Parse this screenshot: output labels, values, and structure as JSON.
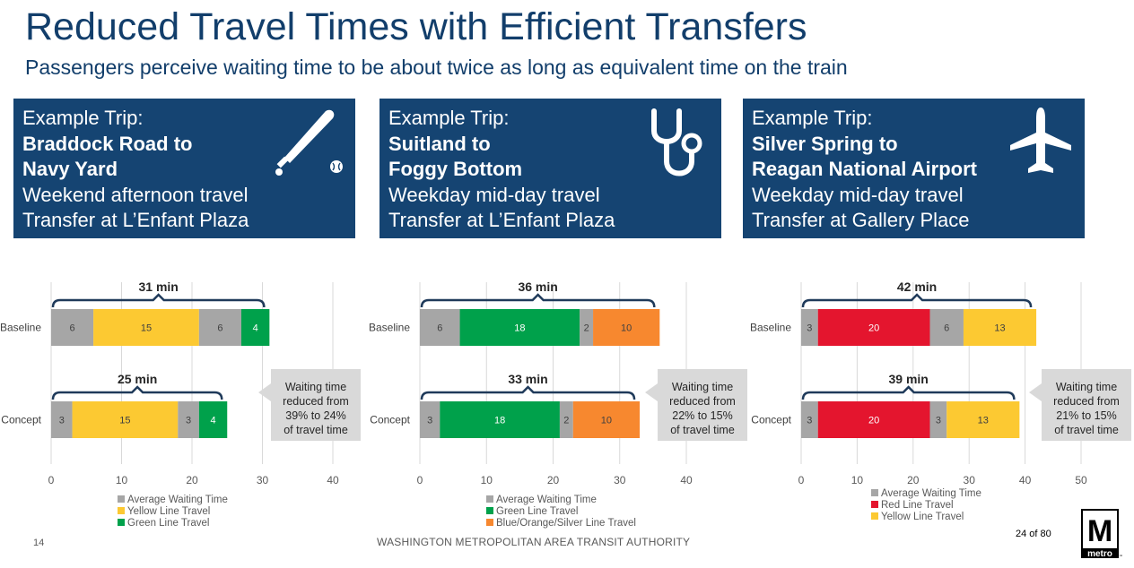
{
  "header": {
    "title": "Reduced Travel Times with Efficient Transfers",
    "subtitle": "Passengers perceive waiting time to be about twice as long as equivalent time on the train"
  },
  "trips": [
    {
      "label": "Example Trip:",
      "route_line1": "Braddock Road to",
      "route_line2": "Navy Yard",
      "time": "Weekend afternoon travel",
      "transfer": "Transfer at L’Enfant Plaza",
      "icon": "baseball-bat-icon"
    },
    {
      "label": "Example Trip:",
      "route_line1": "Suitland to",
      "route_line2": "Foggy Bottom",
      "time": "Weekday mid-day travel",
      "transfer": "Transfer at L’Enfant Plaza",
      "icon": "stethoscope-icon"
    },
    {
      "label": "Example Trip:",
      "route_line1": "Silver Spring to",
      "route_line2": "Reagan National Airport",
      "time": "Weekday mid-day travel",
      "transfer": "Transfer at Gallery Place",
      "icon": "airplane-icon"
    }
  ],
  "colors": {
    "waiting": "#a6a6a6",
    "yellow": "#fcc932",
    "green": "#00a14b",
    "orange": "#f7882f",
    "red": "#e4152e",
    "navy": "#154472",
    "callout": "#d9d9d9"
  },
  "chart_data": [
    {
      "type": "bar",
      "orientation": "horizontal",
      "stacked": true,
      "categories": [
        "Baseline",
        "Concept"
      ],
      "series": [
        {
          "name": "Average Waiting Time",
          "color": "#a6a6a6"
        },
        {
          "name": "Yellow Line Travel",
          "color": "#fcc932"
        },
        {
          "name": "Green Line Travel",
          "color": "#00a14b"
        }
      ],
      "bars": [
        {
          "category": "Baseline",
          "total_label": "31 min",
          "segments": [
            {
              "series": 0,
              "value": 6
            },
            {
              "series": 1,
              "value": 15
            },
            {
              "series": 0,
              "value": 6
            },
            {
              "series": 2,
              "value": 4
            }
          ]
        },
        {
          "category": "Concept",
          "total_label": "25 min",
          "segments": [
            {
              "series": 0,
              "value": 3
            },
            {
              "series": 1,
              "value": 15
            },
            {
              "series": 0,
              "value": 3
            },
            {
              "series": 2,
              "value": 4
            }
          ]
        }
      ],
      "xlim": [
        0,
        40
      ],
      "xticks": [
        0,
        10,
        20,
        30,
        40
      ],
      "grid": true,
      "legend_position": "bottom",
      "callout": [
        "Waiting time",
        "reduced from",
        "39% to 24%",
        "of travel time"
      ]
    },
    {
      "type": "bar",
      "orientation": "horizontal",
      "stacked": true,
      "categories": [
        "Baseline",
        "Concept"
      ],
      "series": [
        {
          "name": "Average Waiting Time",
          "color": "#a6a6a6"
        },
        {
          "name": "Green Line Travel",
          "color": "#00a14b"
        },
        {
          "name": "Blue/Orange/Silver Line Travel",
          "color": "#f7882f"
        }
      ],
      "bars": [
        {
          "category": "Baseline",
          "total_label": "36 min",
          "segments": [
            {
              "series": 0,
              "value": 6
            },
            {
              "series": 1,
              "value": 18
            },
            {
              "series": 0,
              "value": 2
            },
            {
              "series": 2,
              "value": 10
            }
          ]
        },
        {
          "category": "Concept",
          "total_label": "33 min",
          "segments": [
            {
              "series": 0,
              "value": 3
            },
            {
              "series": 1,
              "value": 18
            },
            {
              "series": 0,
              "value": 2
            },
            {
              "series": 2,
              "value": 10
            }
          ]
        }
      ],
      "xlim": [
        0,
        40
      ],
      "xticks": [
        0,
        10,
        20,
        30,
        40
      ],
      "grid": true,
      "legend_position": "bottom",
      "callout": [
        "Waiting time",
        "reduced from",
        "22% to 15%",
        "of travel time"
      ]
    },
    {
      "type": "bar",
      "orientation": "horizontal",
      "stacked": true,
      "categories": [
        "Baseline",
        "Concept"
      ],
      "series": [
        {
          "name": "Average Waiting Time",
          "color": "#a6a6a6"
        },
        {
          "name": "Red Line Travel",
          "color": "#e4152e"
        },
        {
          "name": "Yellow Line Travel",
          "color": "#fcc932"
        }
      ],
      "bars": [
        {
          "category": "Baseline",
          "total_label": "42 min",
          "segments": [
            {
              "series": 0,
              "value": 3
            },
            {
              "series": 1,
              "value": 20
            },
            {
              "series": 0,
              "value": 6
            },
            {
              "series": 2,
              "value": 13
            }
          ]
        },
        {
          "category": "Concept",
          "total_label": "39 min",
          "segments": [
            {
              "series": 0,
              "value": 3
            },
            {
              "series": 1,
              "value": 20
            },
            {
              "series": 0,
              "value": 3
            },
            {
              "series": 2,
              "value": 13
            }
          ]
        }
      ],
      "xlim": [
        0,
        50
      ],
      "xticks": [
        0,
        10,
        20,
        30,
        40,
        50
      ],
      "grid": true,
      "legend_position": "bottom",
      "callout": [
        "Waiting time",
        "reduced from",
        "21% to 15%",
        "of travel time"
      ]
    }
  ],
  "footer": {
    "slide_number": "14",
    "organization": "WASHINGTON METROPOLITAN AREA TRANSIT AUTHORITY",
    "page_count": "24 of 80",
    "logo_letter": "M",
    "logo_word": "metro",
    "logo_mark": "™"
  }
}
